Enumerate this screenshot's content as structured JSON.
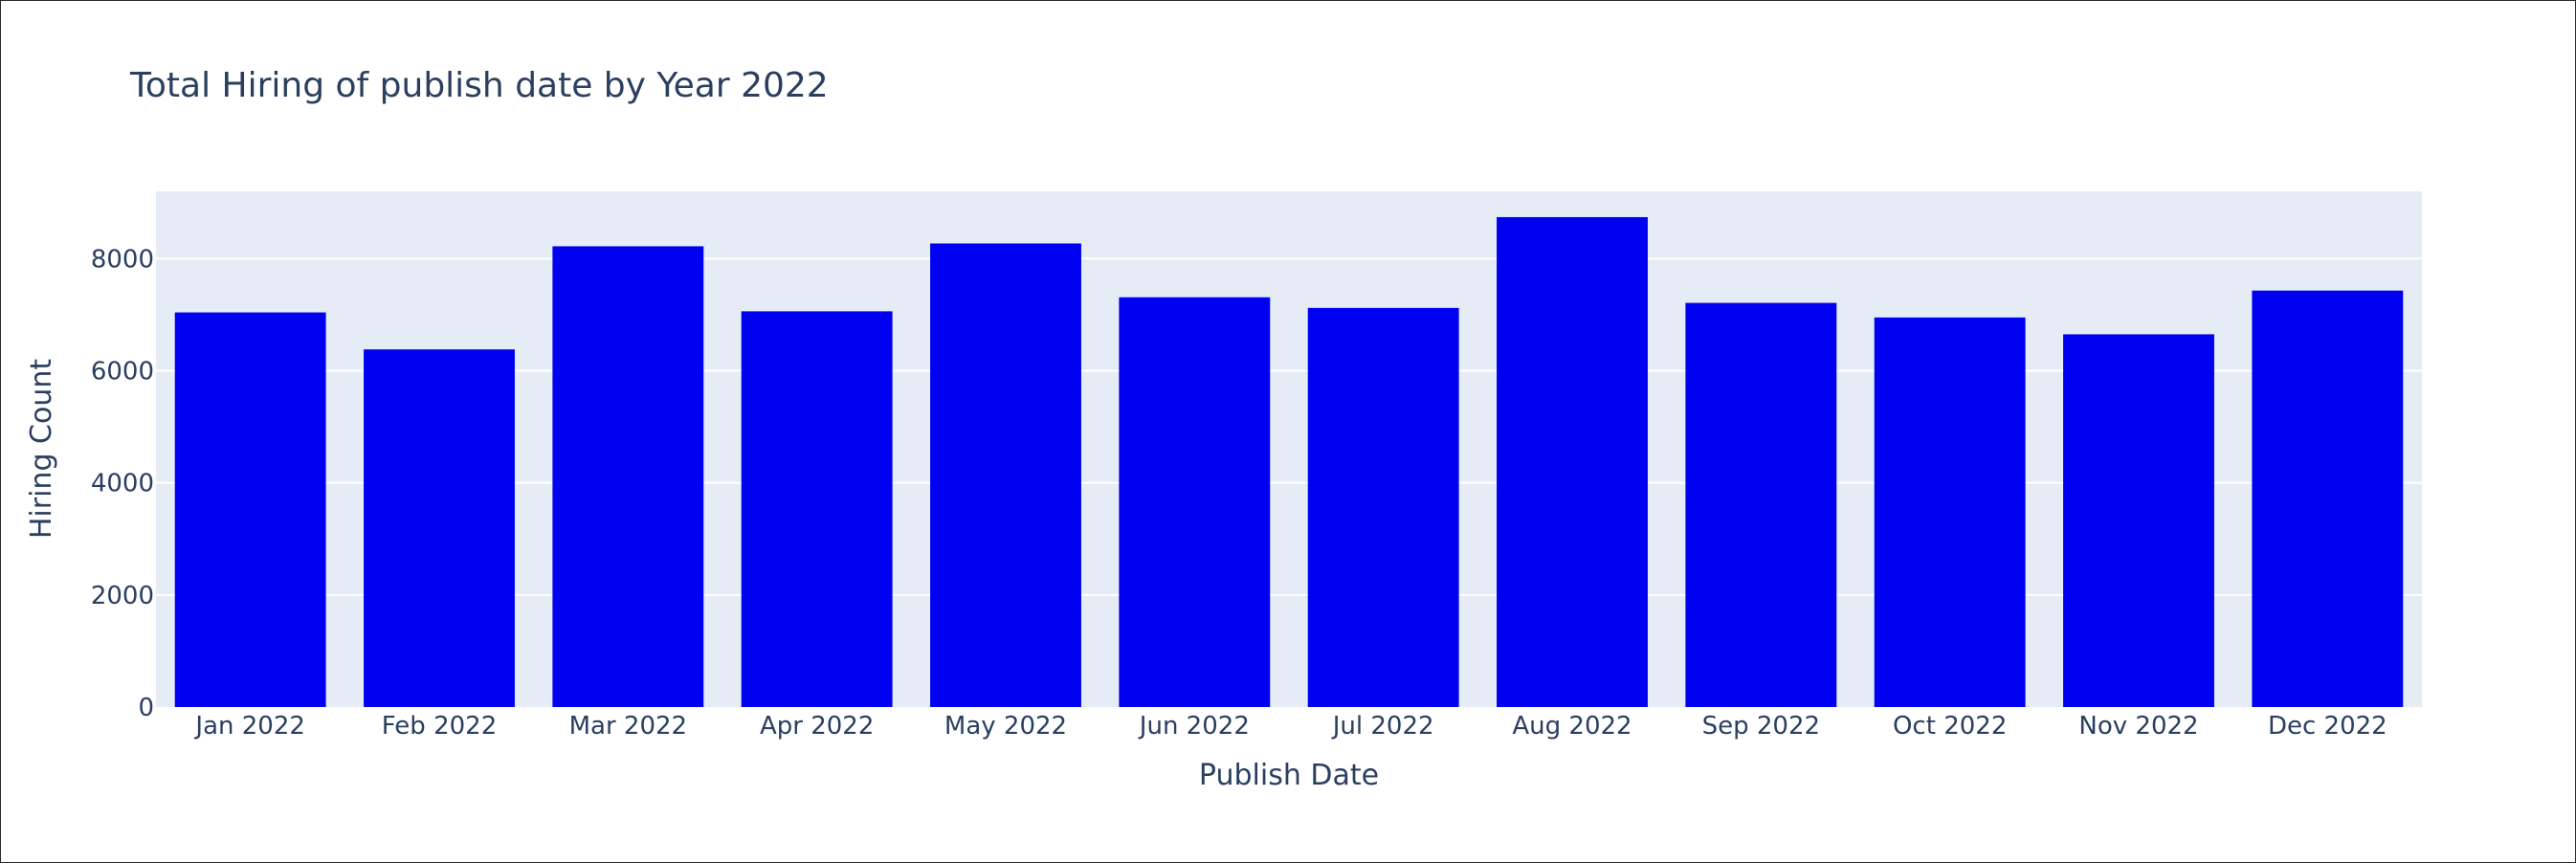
{
  "chart_data": {
    "type": "bar",
    "title": "Total Hiring of publish date by Year 2022",
    "xlabel": "Publish Date",
    "ylabel": "Hiring Count",
    "categories": [
      "Jan 2022",
      "Feb 2022",
      "Mar 2022",
      "Apr 2022",
      "May 2022",
      "Jun 2022",
      "Jul 2022",
      "Aug 2022",
      "Sep 2022",
      "Oct 2022",
      "Nov 2022",
      "Dec 2022"
    ],
    "values": [
      7040,
      6380,
      8220,
      7060,
      8270,
      7310,
      7120,
      8740,
      7210,
      6950,
      6650,
      7430
    ],
    "ylim": [
      0,
      9200
    ],
    "yticks": [
      0,
      2000,
      4000,
      6000,
      8000
    ],
    "grid": true,
    "legend": "none",
    "colors": {
      "bar": "#0000f0",
      "plot_bg": "#e5ecf6",
      "gridline": "#ffffff",
      "text": "#2a3f5f"
    }
  }
}
